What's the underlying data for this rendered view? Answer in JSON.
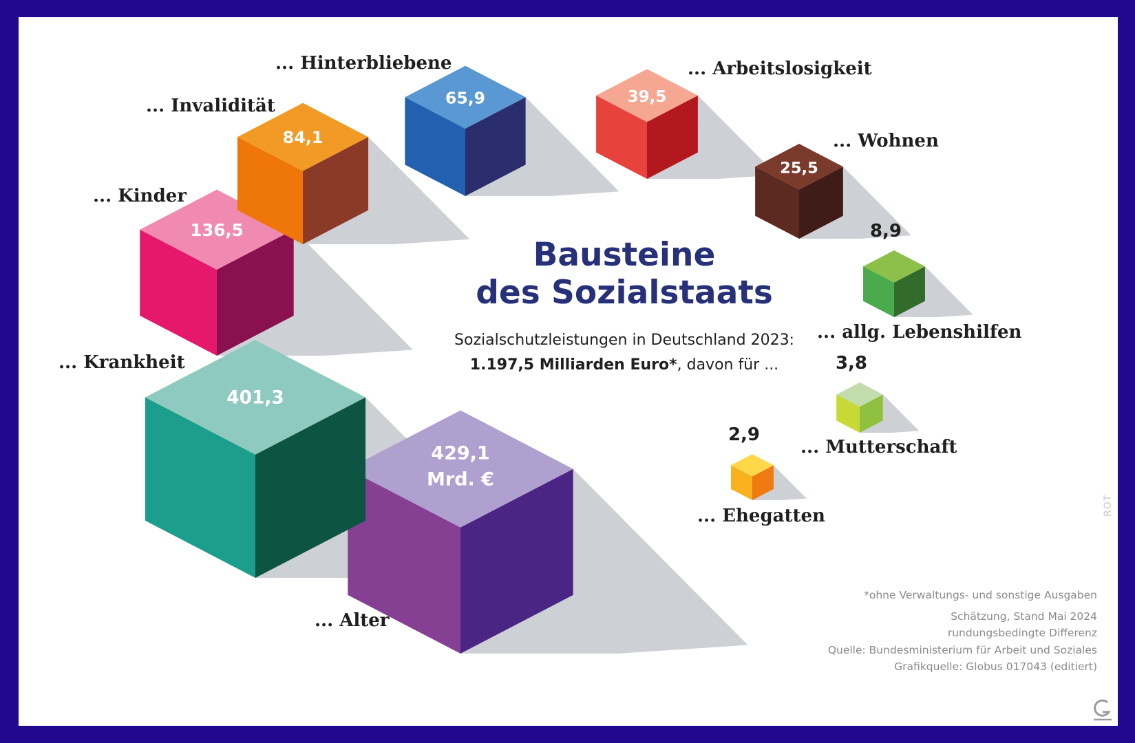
{
  "title_lines": [
    "Bausteine",
    "des Sozialstaats"
  ],
  "subtitle": {
    "line1": "Sozialschutzleistungen in Deutschland 2023:",
    "total_bold": "1.197,5 Milliarden Euro*",
    "line2_rest": ", davon für ..."
  },
  "footnotes": {
    "asterisk_note": "*ohne Verwaltungs- und sonstige Ausgaben",
    "lines": [
      "Schätzung, Stand Mai 2024",
      "rundungsbedingte Differenz",
      "Quelle: Bundesministerium für Arbeit und Soziales",
      "Grafikquelle: Globus 017043 (editiert)"
    ]
  },
  "side_mark": "ROT",
  "logo_icon": "globus-g-logo-icon",
  "chart_data": {
    "type": "bar",
    "style": "isometric cubes sized by value",
    "unit": "Mrd. €",
    "total": 1197.5,
    "items": [
      {
        "label": "... Alter",
        "value": 429.1,
        "value_text": "429,1",
        "unit_text": "Mrd. €",
        "colors": {
          "top": "#b0a0d0",
          "left": "#854094",
          "right": "#4a2583"
        }
      },
      {
        "label": "... Krankheit",
        "value": 401.3,
        "value_text": "401,3",
        "colors": {
          "top": "#8ecac0",
          "left": "#1b9e8c",
          "right": "#0d5443"
        }
      },
      {
        "label": "... Kinder",
        "value": 136.5,
        "value_text": "136,5",
        "colors": {
          "top": "#f18ab0",
          "left": "#e6186b",
          "right": "#8a1050"
        }
      },
      {
        "label": "... Invalidität",
        "value": 84.1,
        "value_text": "84,1",
        "colors": {
          "top": "#f29a26",
          "left": "#ef7608",
          "right": "#8a3a27"
        }
      },
      {
        "label": "... Hinterbliebene",
        "value": 65.9,
        "value_text": "65,9",
        "colors": {
          "top": "#5a98d4",
          "left": "#2161b0",
          "right": "#2b2e6c"
        }
      },
      {
        "label": "... Arbeitslosigkeit",
        "value": 39.5,
        "value_text": "39,5",
        "colors": {
          "top": "#f5a792",
          "left": "#e8423c",
          "right": "#b4181f"
        }
      },
      {
        "label": "... Wohnen",
        "value": 25.5,
        "value_text": "25,5",
        "colors": {
          "top": "#7a3a2c",
          "left": "#5c2a20",
          "right": "#3f1c18"
        }
      },
      {
        "label": "... allg. Lebenshilfen",
        "value": 8.9,
        "value_text": "8,9",
        "colors": {
          "top": "#8cc049",
          "left": "#4aaa4e",
          "right": "#336b2c"
        }
      },
      {
        "label": "... Mutterschaft",
        "value": 3.8,
        "value_text": "3,8",
        "colors": {
          "top": "#c2dcad",
          "left": "#c6d934",
          "right": "#8fc040"
        }
      },
      {
        "label": "... Ehegatten",
        "value": 2.9,
        "value_text": "2,9",
        "colors": {
          "top": "#ffd84a",
          "left": "#f9b21e",
          "right": "#f07a12"
        }
      }
    ]
  }
}
